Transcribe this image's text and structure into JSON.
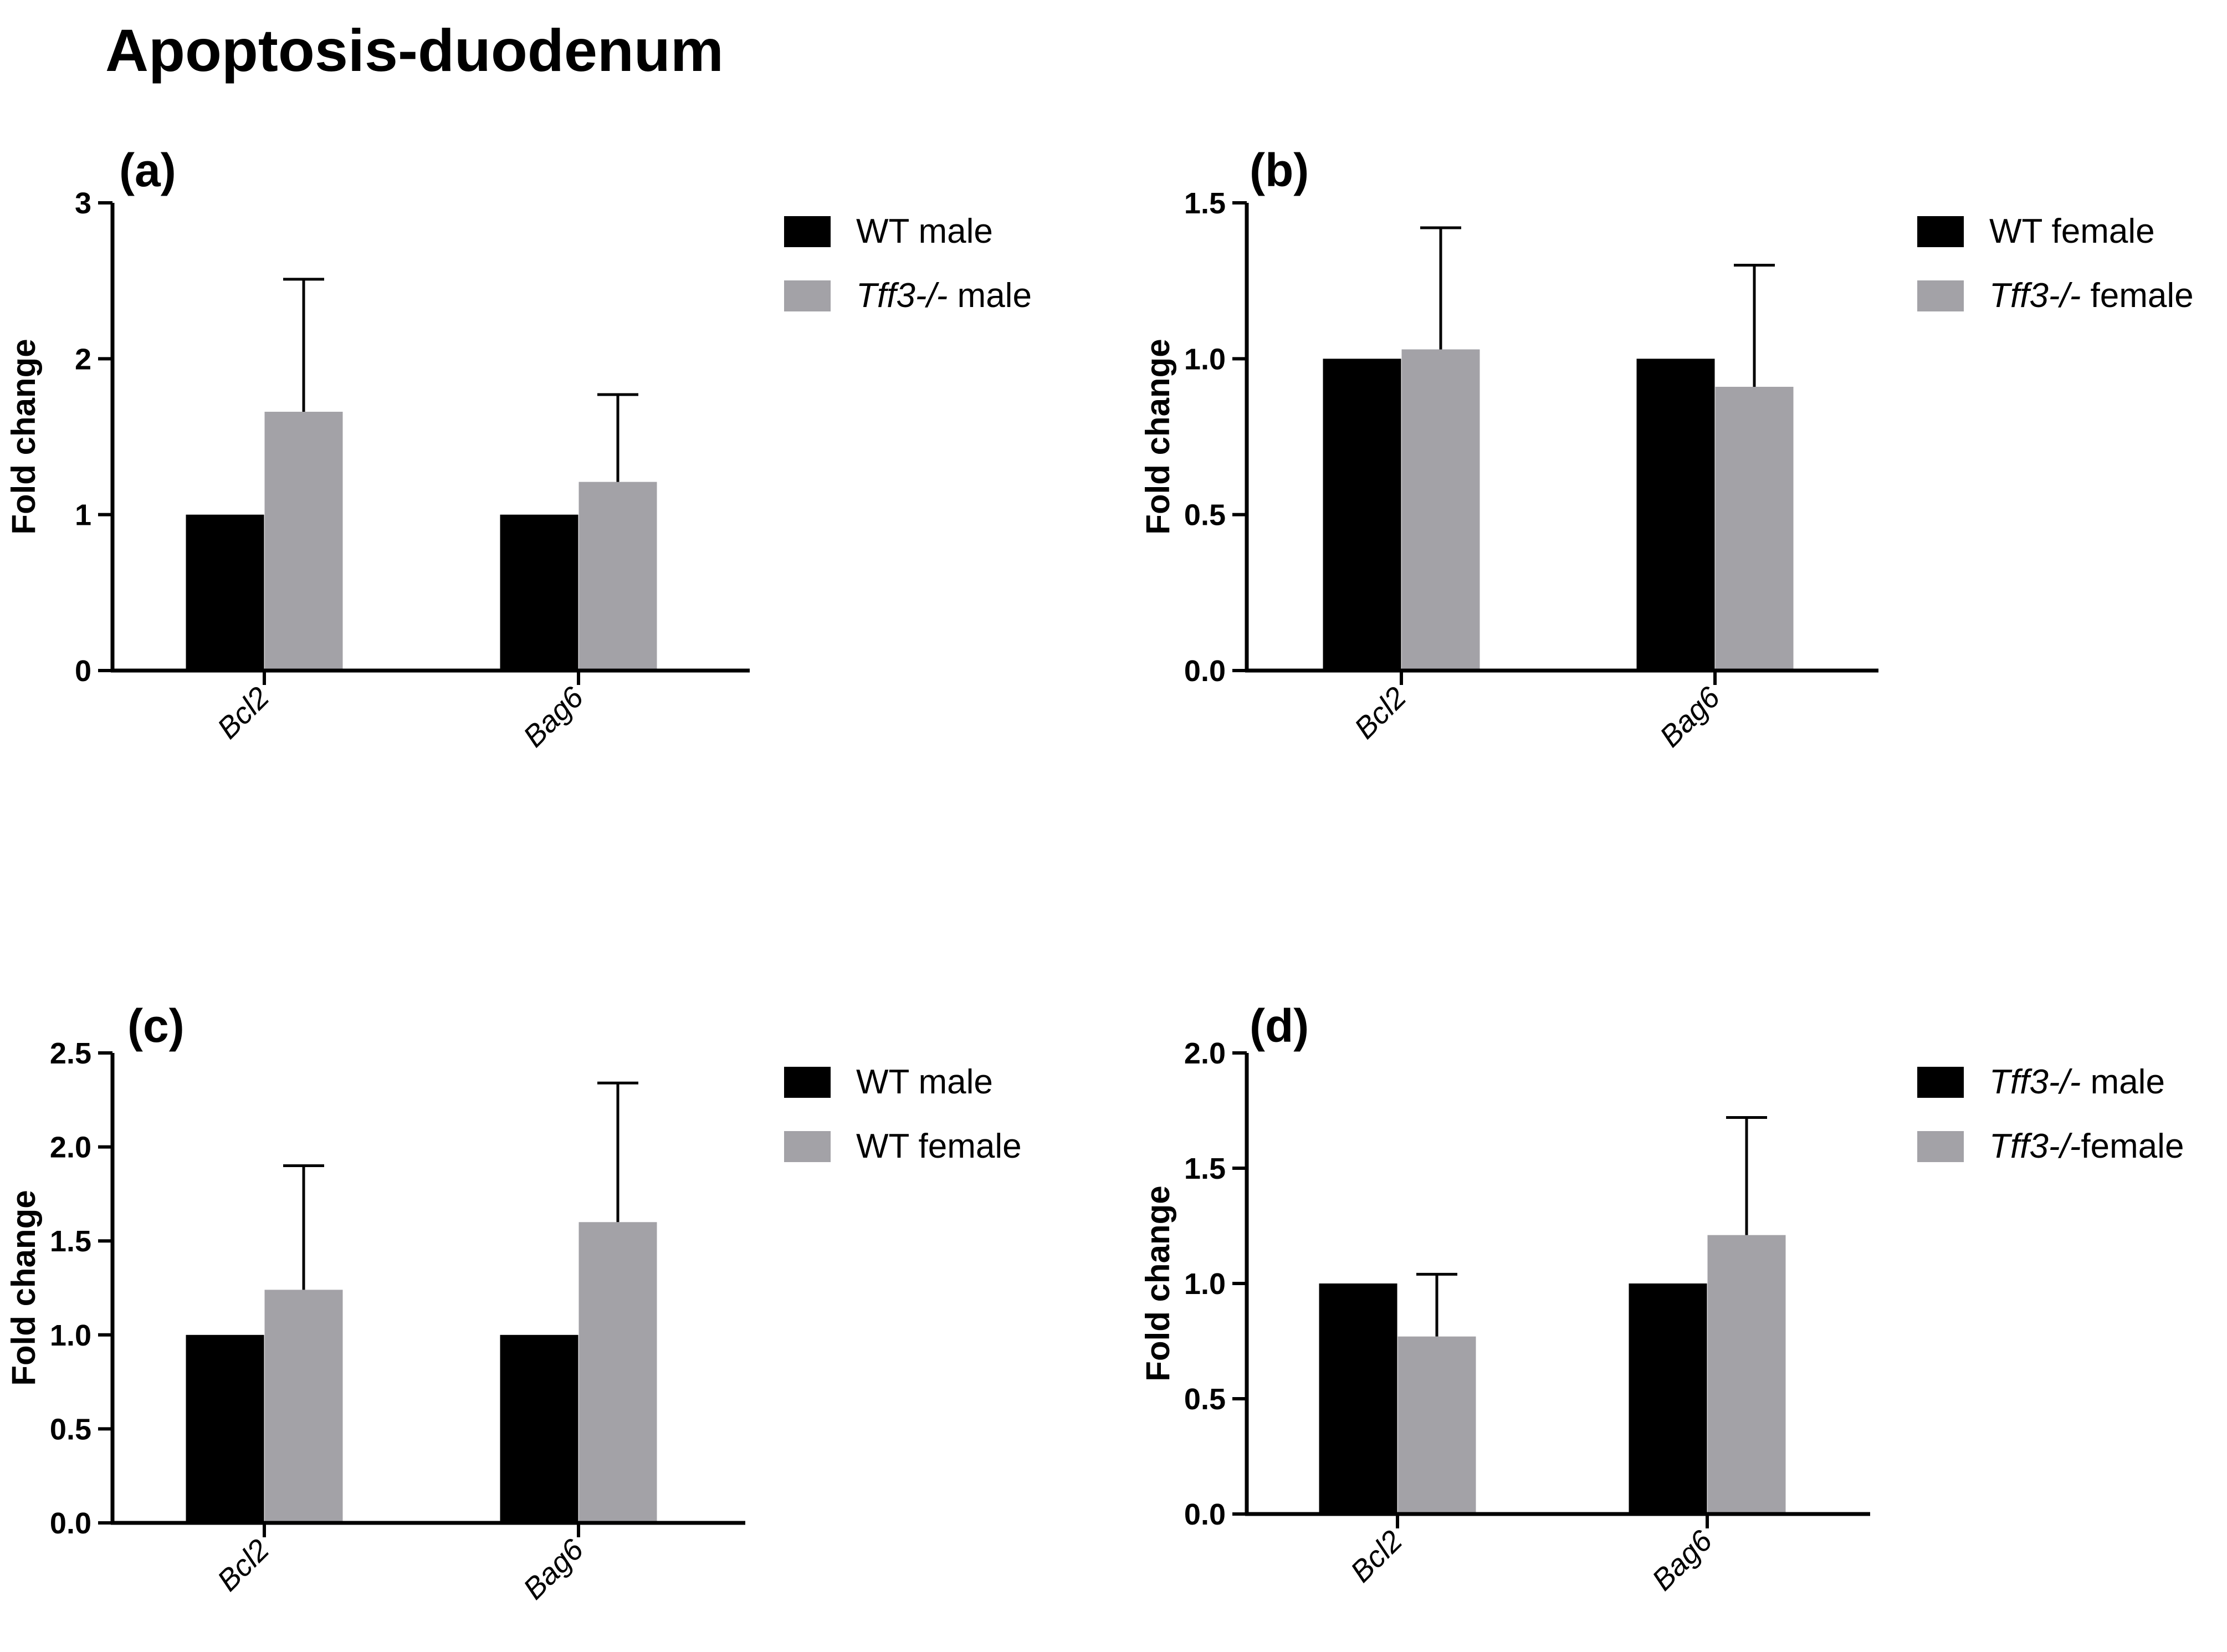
{
  "figure_title": "Apoptosis-duodenum",
  "colors": {
    "series_1": "#000000",
    "series_2": "#a3a2a7",
    "axis": "#000000"
  },
  "chart_data": [
    {
      "panel": "(a)",
      "type": "bar",
      "categories": [
        "Bcl2",
        "Bag6"
      ],
      "ylabel": "Fold change",
      "ylim": [
        0,
        3
      ],
      "yticks": [
        "0",
        "1",
        "2",
        "3"
      ],
      "tick_values": [
        0,
        1,
        2,
        3
      ],
      "legend_placement": "right",
      "series": [
        {
          "name": "WT male",
          "name_italic": "",
          "name_rest": "WT male",
          "values": [
            1.0,
            1.0
          ],
          "errors": [
            0,
            0
          ]
        },
        {
          "name": "Tff3-/- male",
          "name_italic": "Tff3-/-",
          "name_rest": " male",
          "values": [
            1.66,
            1.21
          ],
          "errors": [
            0.85,
            0.56
          ]
        }
      ]
    },
    {
      "panel": "(b)",
      "type": "bar",
      "categories": [
        "Bcl2",
        "Bag6"
      ],
      "ylabel": "Fold change",
      "ylim": [
        0,
        1.5
      ],
      "yticks": [
        "0.0",
        "0.5",
        "1.0",
        "1.5"
      ],
      "tick_values": [
        0,
        0.5,
        1.0,
        1.5
      ],
      "legend_placement": "right",
      "series": [
        {
          "name": "WT female",
          "name_italic": "",
          "name_rest": "WT female",
          "values": [
            1.0,
            1.0
          ],
          "errors": [
            0,
            0
          ]
        },
        {
          "name": "Tff3-/- female",
          "name_italic": "Tff3-/-",
          "name_rest": " female",
          "values": [
            1.03,
            0.91
          ],
          "errors": [
            0.39,
            0.39
          ]
        }
      ]
    },
    {
      "panel": "(c)",
      "type": "bar",
      "categories": [
        "Bcl2",
        "Bag6"
      ],
      "ylabel": "Fold change",
      "ylim": [
        0,
        2.5
      ],
      "yticks": [
        "0.0",
        "0.5",
        "1.0",
        "1.5",
        "2.0",
        "2.5"
      ],
      "tick_values": [
        0,
        0.5,
        1.0,
        1.5,
        2.0,
        2.5
      ],
      "legend_placement": "right",
      "series": [
        {
          "name": "WT male",
          "name_italic": "",
          "name_rest": "WT male",
          "values": [
            1.0,
            1.0
          ],
          "errors": [
            0,
            0
          ]
        },
        {
          "name": "WT female",
          "name_italic": "",
          "name_rest": "WT female",
          "values": [
            1.24,
            1.6
          ],
          "errors": [
            0.66,
            0.74
          ]
        }
      ]
    },
    {
      "panel": "(d)",
      "type": "bar",
      "categories": [
        "Bcl2",
        "Bag6"
      ],
      "ylabel": "Fold change",
      "ylim": [
        0,
        2.0
      ],
      "yticks": [
        "0.0",
        "0.5",
        "1.0",
        "1.5",
        "2.0"
      ],
      "tick_values": [
        0,
        0.5,
        1.0,
        1.5,
        2.0
      ],
      "legend_placement": "right",
      "series": [
        {
          "name": "Tff3-/- male",
          "name_italic": "Tff3-/-",
          "name_rest": " male",
          "values": [
            1.0,
            1.0
          ],
          "errors": [
            0,
            0
          ]
        },
        {
          "name": "Tff3-/-female",
          "name_italic": "Tff3-/-",
          "name_rest": "female",
          "values": [
            0.77,
            1.21
          ],
          "errors": [
            0.27,
            0.51
          ]
        }
      ]
    }
  ]
}
